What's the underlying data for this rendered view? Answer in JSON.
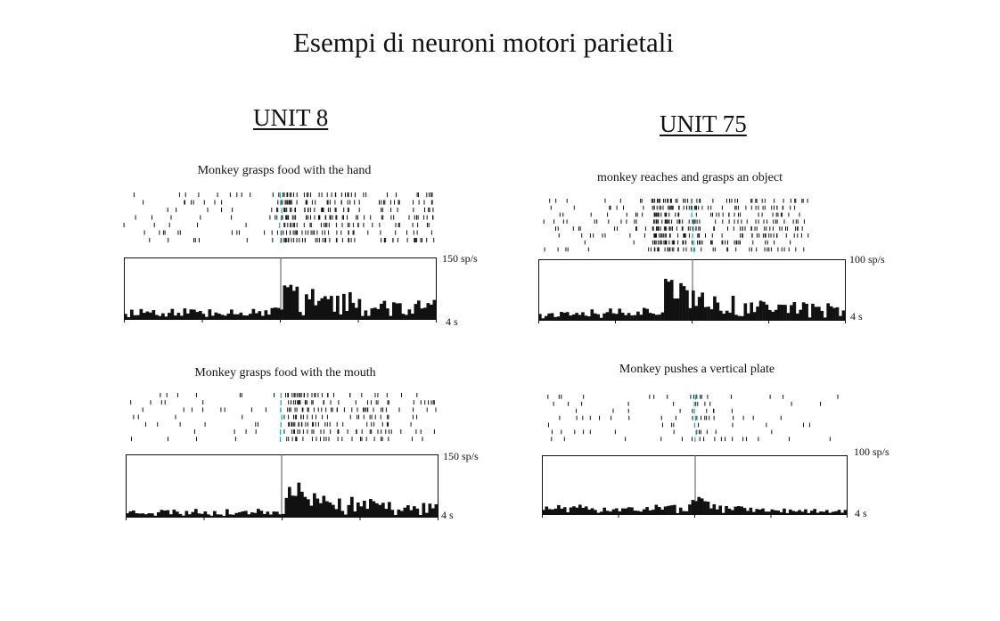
{
  "title": "Esempi di neuroni motori parietali",
  "units": [
    {
      "label": "UNIT 8"
    },
    {
      "label": "UNIT 75"
    }
  ],
  "colors": {
    "ink": "#111111",
    "alignment_marker": "#2aa8b0"
  },
  "chart_data": [
    {
      "type": "raster_histogram",
      "unit": "UNIT 8",
      "condition": "Monkey grasps food with the hand",
      "ymax_label": "150 sp/s",
      "xspan_label": "4 s",
      "ymax": 150,
      "duration_s": 4,
      "n_trials": 7,
      "n_bins": 100,
      "peak_bin": 52,
      "baseline": 0.12,
      "response": 0.42,
      "peak": 0.55,
      "grid": false
    },
    {
      "type": "raster_histogram",
      "unit": "UNIT 8",
      "condition": "Monkey grasps food with the mouth",
      "ymax_label": "150 sp/s",
      "xspan_label": "4 s",
      "ymax": 150,
      "duration_s": 4,
      "n_trials": 7,
      "n_bins": 100,
      "peak_bin": 53,
      "baseline": 0.08,
      "response": 0.3,
      "peak": 0.52,
      "grid": false
    },
    {
      "type": "raster_histogram",
      "unit": "UNIT 75",
      "condition": "monkey reaches and grasps an object",
      "ymax_label": "100 sp/s",
      "xspan_label": "4 s",
      "ymax": 100,
      "duration_s": 4,
      "n_trials": 8,
      "n_bins": 100,
      "peak_bin": 42,
      "baseline": 0.14,
      "response": 0.4,
      "peak": 0.7,
      "grid": false
    },
    {
      "type": "raster_histogram",
      "unit": "UNIT 75",
      "condition": "Monkey pushes a vertical plate",
      "ymax_label": "100 sp/s",
      "xspan_label": "4 s",
      "ymax": 100,
      "duration_s": 4,
      "n_trials": 7,
      "n_bins": 100,
      "peak_bin": 50,
      "baseline": 0.1,
      "response": 0.12,
      "peak": 0.3,
      "grid": false
    }
  ]
}
